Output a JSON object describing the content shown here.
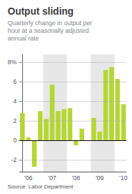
{
  "chart_data": {
    "type": "bar",
    "title": "Output sliding",
    "subtitle": "Quarterly change in output per\nhour at a seasonally adjusted\nannual rate",
    "source": "Source: Labor Department",
    "categories": [
      null,
      "'06",
      null,
      null,
      null,
      "'07",
      null,
      null,
      null,
      "'08",
      null,
      null,
      null,
      "'09",
      null,
      null,
      null,
      "'10"
    ],
    "values": [
      2.8,
      0.3,
      -2.7,
      3.0,
      2.2,
      5.7,
      3.0,
      3.2,
      3.3,
      -0.5,
      1.2,
      0.0,
      2.3,
      0.9,
      7.2,
      7.5,
      6.3,
      3.7
    ],
    "shaded_regions": [
      [
        3.5,
        7.5
      ],
      [
        11.5,
        15.5
      ]
    ],
    "ylim": [
      -3.2,
      8.8
    ],
    "yticks": [
      -2,
      0,
      2,
      4,
      6,
      {
        "value": 8,
        "label": "8%"
      }
    ],
    "grid": true
  }
}
